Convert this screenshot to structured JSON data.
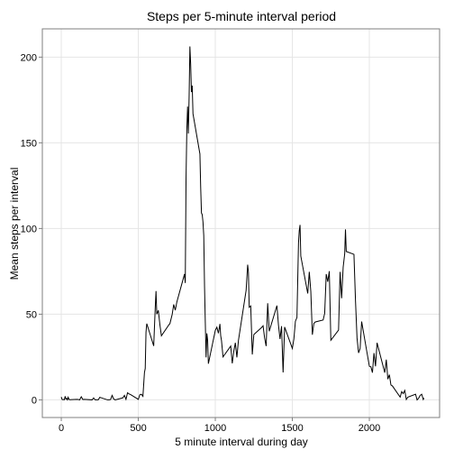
{
  "chart_data": {
    "type": "line",
    "title": "Steps per 5-minute interval period",
    "xlabel": "5 minute interval during day",
    "ylabel": "Mean steps per interval",
    "x": [
      0,
      5,
      10,
      15,
      20,
      25,
      30,
      35,
      40,
      45,
      50,
      55,
      100,
      110,
      120,
      125,
      130,
      140,
      150,
      200,
      210,
      220,
      230,
      240,
      250,
      300,
      310,
      320,
      330,
      340,
      350,
      400,
      410,
      420,
      430,
      440,
      450,
      500,
      505,
      510,
      520,
      530,
      540,
      545,
      550,
      555,
      600,
      610,
      615,
      620,
      630,
      640,
      650,
      700,
      705,
      720,
      730,
      740,
      750,
      800,
      805,
      810,
      815,
      820,
      825,
      830,
      835,
      840,
      845,
      850,
      855,
      900,
      905,
      910,
      915,
      920,
      925,
      930,
      935,
      940,
      945,
      950,
      955,
      1000,
      1010,
      1020,
      1030,
      1035,
      1040,
      1050,
      1100,
      1110,
      1120,
      1130,
      1140,
      1150,
      1200,
      1210,
      1215,
      1220,
      1230,
      1240,
      1250,
      1300,
      1310,
      1320,
      1330,
      1340,
      1350,
      1400,
      1410,
      1420,
      1430,
      1440,
      1450,
      1500,
      1510,
      1520,
      1530,
      1540,
      1545,
      1550,
      1555,
      1600,
      1610,
      1620,
      1630,
      1640,
      1650,
      1700,
      1710,
      1720,
      1730,
      1740,
      1750,
      1800,
      1810,
      1820,
      1830,
      1840,
      1845,
      1850,
      1900,
      1910,
      1920,
      1930,
      1940,
      1950,
      2000,
      2010,
      2020,
      2030,
      2040,
      2050,
      2100,
      2110,
      2120,
      2130,
      2140,
      2150,
      2200,
      2210,
      2220,
      2230,
      2240,
      2250,
      2300,
      2310,
      2320,
      2330,
      2340,
      2350,
      2355
    ],
    "series": [
      {
        "name": "steps",
        "color": "#000000",
        "values": [
          1.7,
          0.3,
          0.1,
          0.2,
          0.1,
          2.1,
          0.5,
          0.9,
          0,
          1.5,
          0.3,
          0.1,
          0.3,
          0.2,
          0,
          1.1,
          1.8,
          0.2,
          0.3,
          0,
          1.1,
          0,
          0,
          0,
          1.5,
          0,
          0,
          0.2,
          2.6,
          0.5,
          0,
          1.2,
          2.6,
          0.3,
          4.1,
          3.5,
          3.1,
          0.3,
          1.6,
          3.0,
          3.3,
          2.1,
          16.0,
          18.3,
          39.5,
          44.5,
          31.5,
          53.8,
          63.5,
          50.0,
          52.2,
          44.0,
          37.4,
          44.0,
          44.4,
          49.9,
          55.7,
          52.3,
          57.0,
          73.4,
          68.2,
          129.4,
          157.5,
          171.2,
          155.4,
          177.3,
          206.2,
          195.9,
          179.6,
          183.4,
          167.0,
          143.5,
          124.0,
          109.1,
          108.1,
          103.7,
          95.9,
          66.2,
          45.2,
          24.8,
          38.8,
          35.0,
          21.1,
          40.6,
          42.4,
          38.9,
          44.3,
          37.4,
          34.7,
          25.1,
          31.4,
          21.3,
          28.4,
          33.3,
          24.8,
          34.6,
          63.9,
          78.9,
          74.5,
          54.0,
          54.8,
          26.5,
          38.1,
          42.2,
          43.2,
          36.1,
          31.4,
          56.4,
          40.0,
          55.0,
          43.6,
          35.5,
          43.0,
          16.0,
          42.5,
          30.0,
          35.5,
          45.9,
          48.1,
          91.6,
          98.7,
          102.1,
          83.9,
          62.1,
          74.7,
          63.2,
          38.0,
          44.7,
          45.5,
          46.6,
          50.5,
          73.4,
          68.9,
          75.1,
          34.8,
          40.7,
          74.7,
          59.3,
          77.4,
          85.3,
          99.5,
          86.6,
          84.9,
          58.0,
          36.1,
          27.4,
          30.0,
          45.7,
          19.6,
          19.3,
          15.9,
          27.3,
          19.6,
          33.3,
          15.9,
          23.5,
          12.1,
          14.7,
          8.7,
          8.1,
          1.6,
          4.8,
          3.7,
          5.5,
          0.2,
          1.6,
          3.3,
          0,
          1,
          2.6,
          3.3,
          0.2,
          1.1
        ]
      }
    ],
    "xlim": [
      -123,
      2456
    ],
    "ylim": [
      -10.3,
      216.5
    ],
    "xticks": [
      0,
      500,
      1000,
      1500,
      2000
    ],
    "yticks": [
      0,
      50,
      100,
      150,
      200
    ],
    "grid": true
  }
}
